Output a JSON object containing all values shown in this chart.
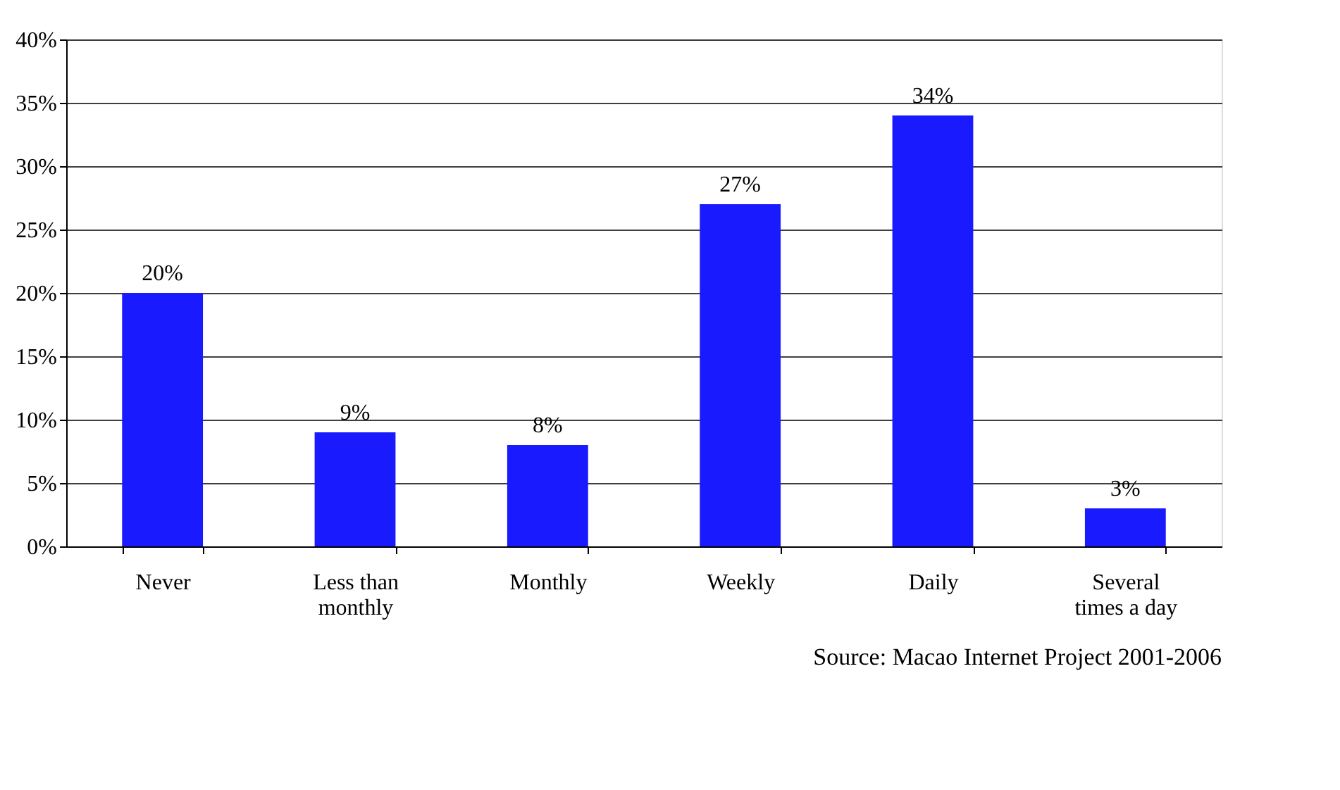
{
  "chart_data": {
    "type": "bar",
    "categories": [
      "Never",
      "Less than monthly",
      "Monthly",
      "Weekly",
      "Daily",
      "Several times a day"
    ],
    "values": [
      20,
      9,
      8,
      27,
      34,
      3
    ],
    "value_labels": [
      "20%",
      "9%",
      "8%",
      "27%",
      "34%",
      "3%"
    ],
    "color": "#1a1aff",
    "ylim": [
      0,
      40
    ],
    "yticks": [
      {
        "value": 0,
        "label": "0%"
      },
      {
        "value": 5,
        "label": "5%"
      },
      {
        "value": 10,
        "label": "10%"
      },
      {
        "value": 15,
        "label": "15%"
      },
      {
        "value": 20,
        "label": "20%"
      },
      {
        "value": 25,
        "label": "25%"
      },
      {
        "value": 30,
        "label": "30%"
      },
      {
        "value": 35,
        "label": "35%"
      },
      {
        "value": 40,
        "label": "40%"
      }
    ],
    "grid": "y",
    "annotations": [
      "Source: Macao Internet Project 2001-2006"
    ]
  }
}
